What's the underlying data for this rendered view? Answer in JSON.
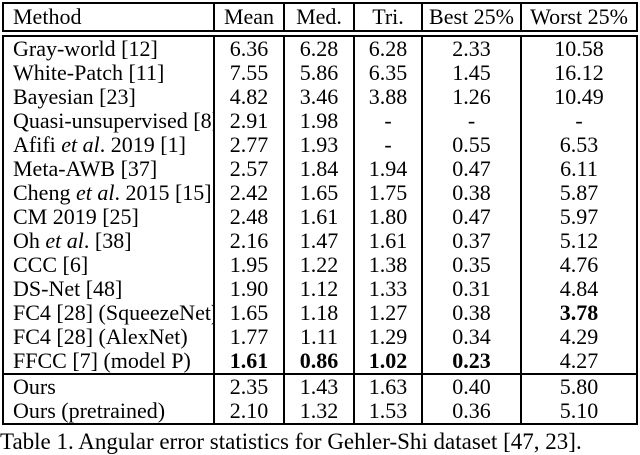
{
  "table": {
    "columns": [
      "Method",
      "Mean",
      "Med.",
      "Tri.",
      "Best 25%",
      "Worst 25%"
    ],
    "rows": [
      {
        "method": [
          {
            "text": "Gray-world [12]",
            "italic": false
          }
        ],
        "values": [
          "6.36",
          "6.28",
          "6.28",
          "2.33",
          "10.58"
        ],
        "bold_cols": []
      },
      {
        "method": [
          {
            "text": "White-Patch [11]",
            "italic": false
          }
        ],
        "values": [
          "7.55",
          "5.86",
          "6.35",
          "1.45",
          "16.12"
        ],
        "bold_cols": []
      },
      {
        "method": [
          {
            "text": "Bayesian [23]",
            "italic": false
          }
        ],
        "values": [
          "4.82",
          "3.46",
          "3.88",
          "1.26",
          "10.49"
        ],
        "bold_cols": []
      },
      {
        "method": [
          {
            "text": "Quasi-unsupervised [8]",
            "italic": false
          }
        ],
        "values": [
          "2.91",
          "1.98",
          "-",
          "-",
          "-"
        ],
        "bold_cols": []
      },
      {
        "method": [
          {
            "text": "Afifi ",
            "italic": false
          },
          {
            "text": "et al",
            "italic": true
          },
          {
            "text": ". 2019 [1]",
            "italic": false
          }
        ],
        "values": [
          "2.77",
          "1.93",
          "-",
          "0.55",
          "6.53"
        ],
        "bold_cols": []
      },
      {
        "method": [
          {
            "text": "Meta-AWB [37]",
            "italic": false
          }
        ],
        "values": [
          "2.57",
          "1.84",
          "1.94",
          "0.47",
          "6.11"
        ],
        "bold_cols": []
      },
      {
        "method": [
          {
            "text": "Cheng ",
            "italic": false
          },
          {
            "text": "et al",
            "italic": true
          },
          {
            "text": ". 2015 [15]",
            "italic": false
          }
        ],
        "values": [
          "2.42",
          "1.65",
          "1.75",
          "0.38",
          "5.87"
        ],
        "bold_cols": []
      },
      {
        "method": [
          {
            "text": "CM 2019 [25]",
            "italic": false
          }
        ],
        "values": [
          "2.48",
          "1.61",
          "1.80",
          "0.47",
          "5.97"
        ],
        "bold_cols": []
      },
      {
        "method": [
          {
            "text": "Oh ",
            "italic": false
          },
          {
            "text": "et al",
            "italic": true
          },
          {
            "text": ". [38]",
            "italic": false
          }
        ],
        "values": [
          "2.16",
          "1.47",
          "1.61",
          "0.37",
          "5.12"
        ],
        "bold_cols": []
      },
      {
        "method": [
          {
            "text": "CCC [6]",
            "italic": false
          }
        ],
        "values": [
          "1.95",
          "1.22",
          "1.38",
          "0.35",
          "4.76"
        ],
        "bold_cols": []
      },
      {
        "method": [
          {
            "text": "DS-Net [48]",
            "italic": false
          }
        ],
        "values": [
          "1.90",
          "1.12",
          "1.33",
          "0.31",
          "4.84"
        ],
        "bold_cols": []
      },
      {
        "method": [
          {
            "text": "FC4 [28] (SqueezeNet)",
            "italic": false
          }
        ],
        "values": [
          "1.65",
          "1.18",
          "1.27",
          "0.38",
          "3.78"
        ],
        "bold_cols": [
          4
        ]
      },
      {
        "method": [
          {
            "text": "FC4 [28] (AlexNet)",
            "italic": false
          }
        ],
        "values": [
          "1.77",
          "1.11",
          "1.29",
          "0.34",
          "4.29"
        ],
        "bold_cols": []
      },
      {
        "method": [
          {
            "text": "FFCC [7] (model P)",
            "italic": false
          }
        ],
        "values": [
          "1.61",
          "0.86",
          "1.02",
          "0.23",
          "4.27"
        ],
        "bold_cols": [
          0,
          1,
          2,
          3
        ]
      },
      {
        "method": [
          {
            "text": "Ours",
            "italic": false
          }
        ],
        "values": [
          "2.35",
          "1.43",
          "1.63",
          "0.40",
          "5.80"
        ],
        "bold_cols": [],
        "separator_before": true
      },
      {
        "method": [
          {
            "text": "Ours (pretrained)",
            "italic": false
          }
        ],
        "values": [
          "2.10",
          "1.32",
          "1.53",
          "0.36",
          "5.10"
        ],
        "bold_cols": []
      }
    ],
    "caption": "Table 1. Angular error statistics for Gehler-Shi dataset [47, 23]."
  }
}
